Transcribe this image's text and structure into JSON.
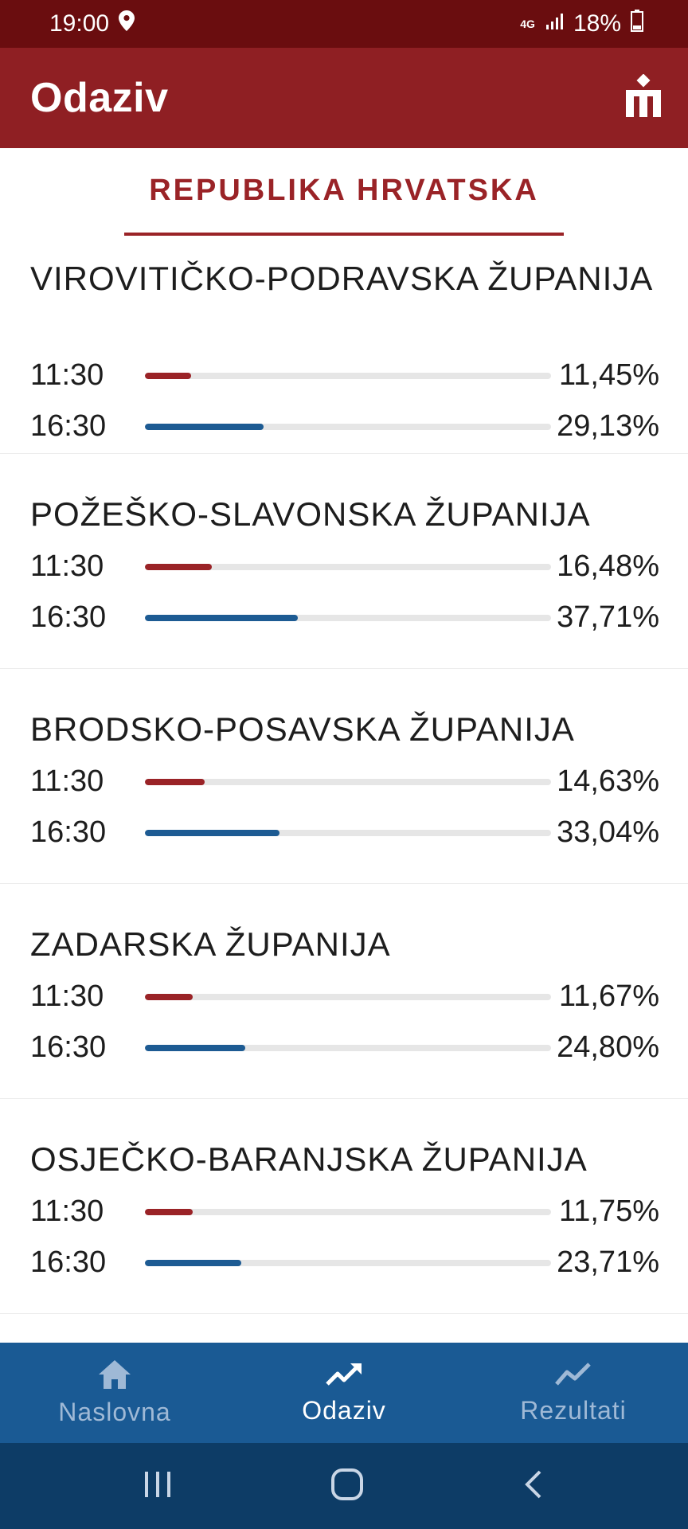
{
  "status_bar": {
    "time": "19:00",
    "network": "4G",
    "battery": "18%"
  },
  "app_bar": {
    "title": "Odaziv",
    "logo_icon": "brand-logo-icon"
  },
  "region": {
    "name": "REPUBLIKA HRVATSKA"
  },
  "counties": [
    {
      "name": "VIROVITIČKO-PODRAVSKA ŽUPANIJA",
      "rows": [
        {
          "time": "11:30",
          "percent_label": "11,45%",
          "value": 11.45
        },
        {
          "time": "16:30",
          "percent_label": "29,13%",
          "value": 29.13
        }
      ]
    },
    {
      "name": "POŽEŠKO-SLAVONSKA ŽUPANIJA",
      "rows": [
        {
          "time": "11:30",
          "percent_label": "16,48%",
          "value": 16.48
        },
        {
          "time": "16:30",
          "percent_label": "37,71%",
          "value": 37.71
        }
      ]
    },
    {
      "name": "BRODSKO-POSAVSKA ŽUPANIJA",
      "rows": [
        {
          "time": "11:30",
          "percent_label": "14,63%",
          "value": 14.63
        },
        {
          "time": "16:30",
          "percent_label": "33,04%",
          "value": 33.04
        }
      ]
    },
    {
      "name": "ZADARSKA ŽUPANIJA",
      "rows": [
        {
          "time": "11:30",
          "percent_label": "11,67%",
          "value": 11.67
        },
        {
          "time": "16:30",
          "percent_label": "24,80%",
          "value": 24.8
        }
      ]
    },
    {
      "name": "OSJEČKO-BARANJSKA ŽUPANIJA",
      "rows": [
        {
          "time": "11:30",
          "percent_label": "11,75%",
          "value": 11.75
        },
        {
          "time": "16:30",
          "percent_label": "23,71%",
          "value": 23.71
        }
      ]
    }
  ],
  "colors": {
    "morning_bar": "#9a2327",
    "afternoon_bar": "#1d5b93",
    "app_bar": "#8f1f23",
    "nav_bar": "#1a5a94"
  },
  "bottom_nav": {
    "items": [
      {
        "label": "Naslovna",
        "icon": "home-icon",
        "active": false
      },
      {
        "label": "Odaziv",
        "icon": "trending-up-icon",
        "active": true
      },
      {
        "label": "Rezultati",
        "icon": "line-chart-icon",
        "active": false
      }
    ]
  }
}
